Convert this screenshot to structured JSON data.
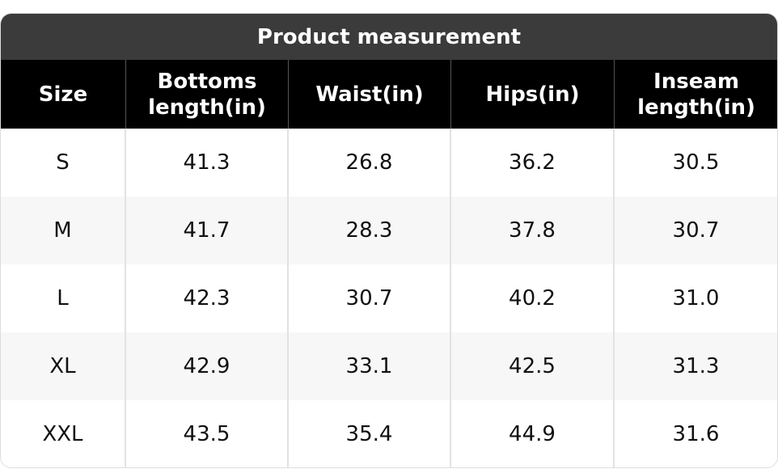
{
  "header": {
    "title": "Product measurement"
  },
  "table": {
    "columns": [
      "Size",
      "Bottoms length(in)",
      "Waist(in)",
      "Hips(in)",
      "Inseam length(in)"
    ],
    "rows": [
      [
        "S",
        "41.3",
        "26.8",
        "36.2",
        "30.5"
      ],
      [
        "M",
        "41.7",
        "28.3",
        "37.8",
        "30.7"
      ],
      [
        "L",
        "42.3",
        "30.7",
        "40.2",
        "31.0"
      ],
      [
        "XL",
        "42.9",
        "33.1",
        "42.5",
        "31.3"
      ],
      [
        "XXL",
        "43.5",
        "35.4",
        "44.9",
        "31.6"
      ]
    ]
  }
}
